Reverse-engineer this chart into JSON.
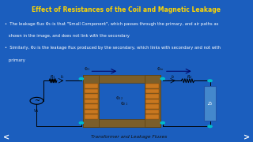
{
  "title": "Effect of Resistances of the Coil and Magnetic Leakage",
  "title_color": "#FFD700",
  "title_fontsize": 5.5,
  "bg_color": "#1B5EBE",
  "bg_top_color": "#0D3D7A",
  "text_color": "white",
  "bullet1_line1": "•  The leakage flux Φ₁ₗ is that \"Small Component\", which passes through the primary, and air paths as",
  "bullet1_line2": "   shown in the image, and does not link with the secondary",
  "bullet2_line1": "•  Similarly, Φ₂ₗ is the leakage flux produced by the secondary, which links with secondary and not with",
  "bullet2_line2": "   primary",
  "caption": "Transformer and Leakage Fluxes",
  "bullet_fontsize": 3.8,
  "caption_fontsize": 4.2,
  "diagram_bg": "#EEF0E8",
  "core_brown": "#7B5E2A",
  "core_dark": "#5A3F10",
  "winding_orange": "#C87820",
  "winding_dark": "#8B4500",
  "load_blue": "#4488CC",
  "node_color": "#00BBCC",
  "nav_color": "#0A2D60"
}
